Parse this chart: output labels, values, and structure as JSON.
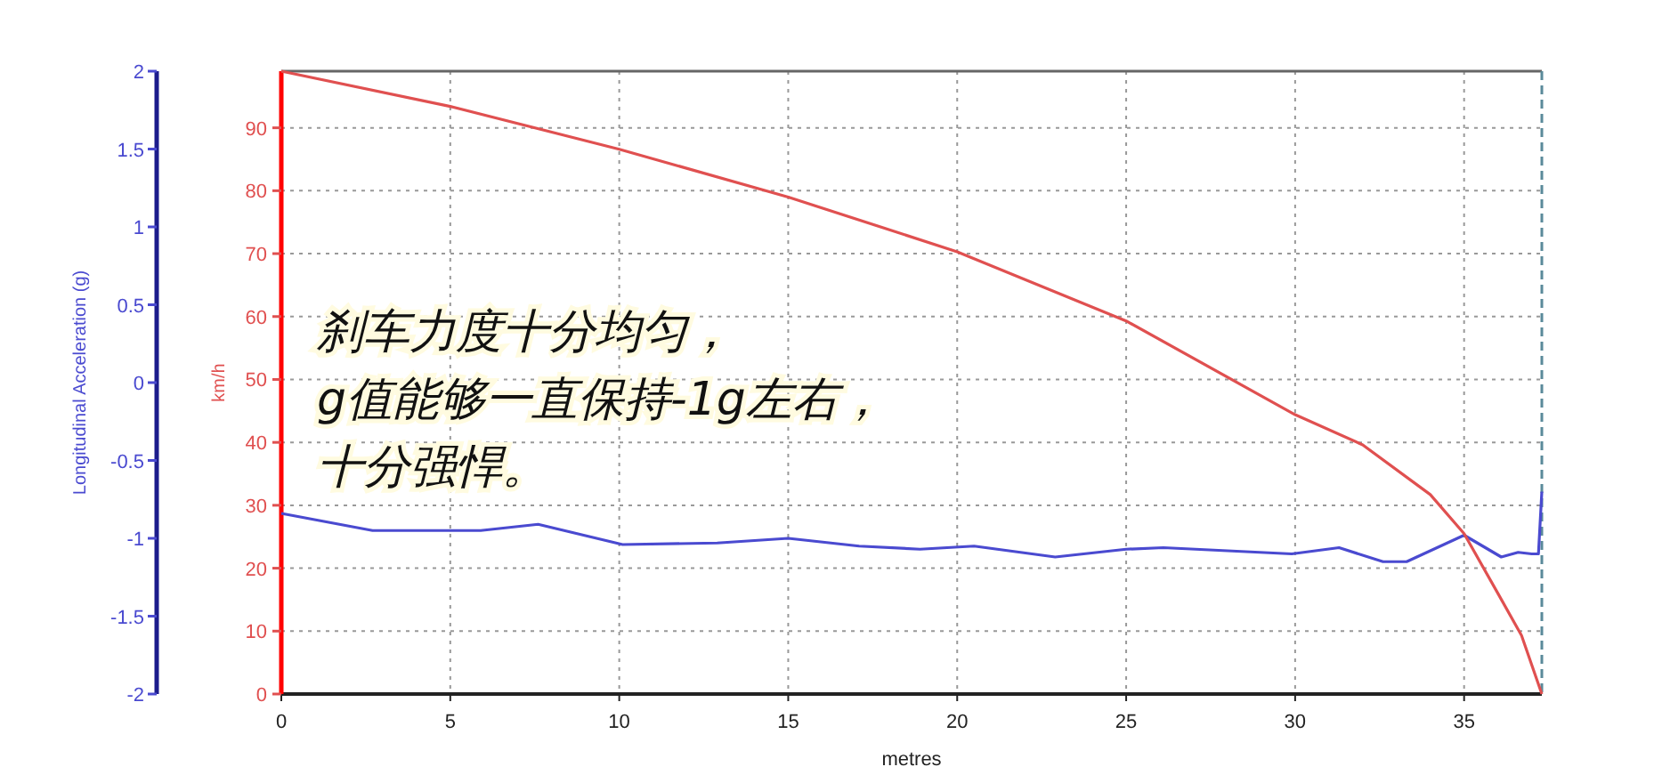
{
  "chart_data": {
    "type": "line",
    "xlabel": "metres",
    "ylabel": "Longitudinal Acceleration (g)",
    "y2label": "km/h",
    "xlim": [
      0,
      37.3
    ],
    "xticks": [
      0,
      5,
      10,
      15,
      20,
      25,
      30,
      35
    ],
    "ylim": [
      -2,
      2
    ],
    "yticks": [
      -2,
      -1.5,
      -1,
      -0.5,
      0,
      0.5,
      1,
      1.5,
      2
    ],
    "y2lim": [
      0,
      99
    ],
    "y2ticks": [
      0,
      10,
      20,
      30,
      40,
      50,
      60,
      70,
      80,
      90
    ],
    "grid": true,
    "annotations": [
      "刹车力度十分均匀，",
      "g值能够一直保持-1g左右，",
      "十分强悍。"
    ],
    "series": [
      {
        "color": "#4a4ad0",
        "axis": "y",
        "x": [
          0,
          2.7,
          5.9,
          7.6,
          10.1,
          12.9,
          15,
          17.1,
          18.9,
          20.5,
          22.9,
          25,
          26.1,
          29.9,
          31.3,
          32.6,
          33.3,
          35,
          36.1,
          36.6,
          37,
          37.2,
          37.3
        ],
        "values": [
          -0.84,
          -0.95,
          -0.95,
          -0.91,
          -1.04,
          -1.03,
          -1,
          -1.05,
          -1.07,
          -1.05,
          -1.12,
          -1.07,
          -1.06,
          -1.1,
          -1.06,
          -1.15,
          -1.15,
          -0.98,
          -1.12,
          -1.09,
          -1.1,
          -1.1,
          -0.7
        ]
      },
      {
        "color": "#e05050",
        "axis": "y2",
        "x": [
          0,
          5,
          10,
          15,
          20,
          25,
          30,
          32,
          34,
          35,
          36,
          36.7,
          37.3
        ],
        "values": [
          99,
          93.4,
          86.6,
          79,
          70.3,
          59.3,
          44.4,
          39.6,
          31.7,
          25.5,
          16,
          9.3,
          0
        ]
      }
    ]
  }
}
